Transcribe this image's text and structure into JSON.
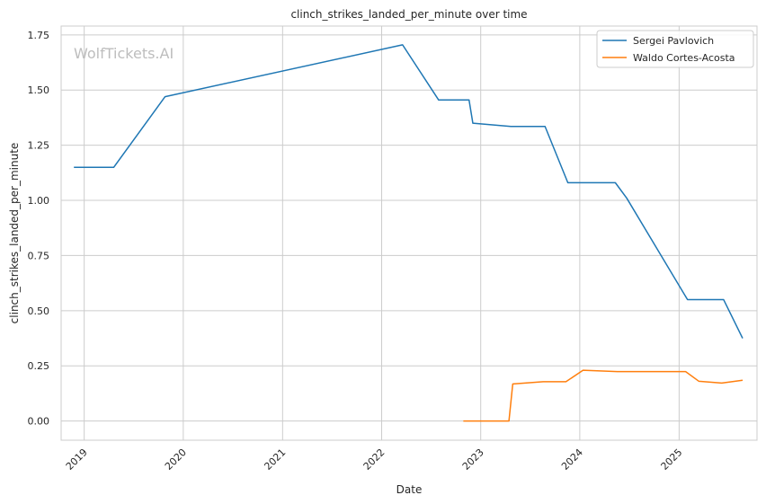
{
  "chart_data": {
    "type": "line",
    "title": "clinch_strikes_landed_per_minute over time",
    "xlabel": "Date",
    "ylabel": "clinch_strikes_landed_per_minute",
    "watermark": "WolfTickets.AI",
    "x_ticks": [
      "2019",
      "2020",
      "2021",
      "2022",
      "2023",
      "2024",
      "2025"
    ],
    "y_ticks": [
      "0.00",
      "0.25",
      "0.50",
      "0.75",
      "1.00",
      "1.25",
      "1.50",
      "1.75"
    ],
    "xlim": [
      "2018-10-08",
      "2025-10-15"
    ],
    "ylim": [
      -0.087,
      1.79
    ],
    "grid": true,
    "legend_position": "top-right",
    "series": [
      {
        "name": "Sergei Pavlovich",
        "color": "#1f77b4",
        "points": [
          [
            "2018-11-24",
            1.15
          ],
          [
            "2019-04-20",
            1.15
          ],
          [
            "2019-10-26",
            1.47
          ],
          [
            "2022-03-19",
            1.705
          ],
          [
            "2022-07-30",
            1.455
          ],
          [
            "2022-11-19",
            1.455
          ],
          [
            "2022-12-03",
            1.35
          ],
          [
            "2023-04-22",
            1.335
          ],
          [
            "2023-08-26",
            1.335
          ],
          [
            "2023-11-18",
            1.08
          ],
          [
            "2024-05-11",
            1.08
          ],
          [
            "2024-06-22",
            1.01
          ],
          [
            "2025-02-01",
            0.55
          ],
          [
            "2025-06-14",
            0.55
          ],
          [
            "2025-08-23",
            0.375
          ]
        ]
      },
      {
        "name": "Waldo Cortes-Acosta",
        "color": "#ff7f0e",
        "points": [
          [
            "2022-10-29",
            0.0
          ],
          [
            "2023-04-15",
            0.0
          ],
          [
            "2023-04-29",
            0.168
          ],
          [
            "2023-08-19",
            0.178
          ],
          [
            "2023-11-11",
            0.178
          ],
          [
            "2024-01-13",
            0.23
          ],
          [
            "2024-05-18",
            0.224
          ],
          [
            "2025-01-25",
            0.224
          ],
          [
            "2025-03-15",
            0.18
          ],
          [
            "2025-06-07",
            0.172
          ],
          [
            "2025-08-23",
            0.185
          ]
        ]
      }
    ]
  }
}
